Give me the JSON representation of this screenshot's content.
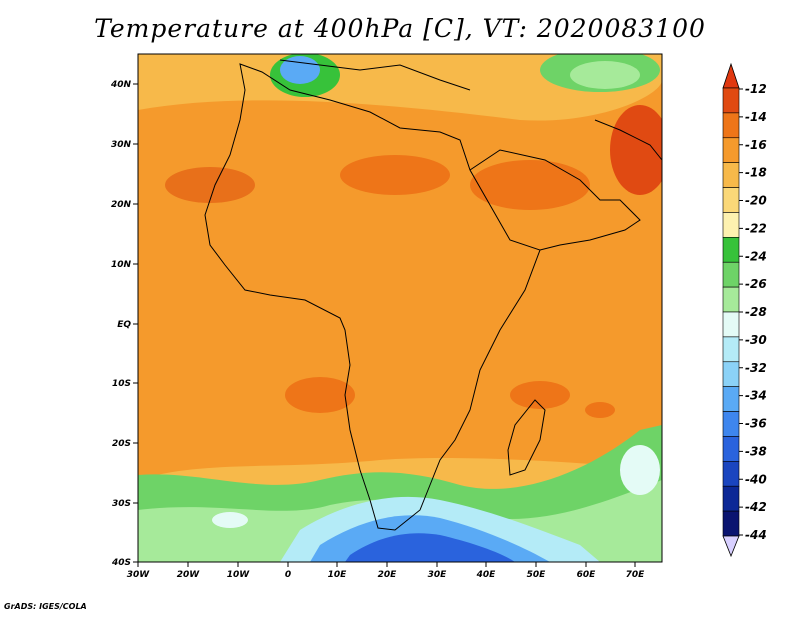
{
  "title": "Temperature at 400hPa [C], VT: 2020083100",
  "credit": "GrADS: IGES/COLA",
  "map": {
    "lon_range": [
      -30,
      76
    ],
    "lat_range": [
      -40,
      45
    ],
    "lat_ticks": [
      "40N",
      "30N",
      "20N",
      "10N",
      "EQ",
      "10S",
      "20S",
      "30S",
      "40S"
    ],
    "lon_ticks": [
      "30W",
      "20W",
      "10W",
      "0",
      "10E",
      "20E",
      "30E",
      "40E",
      "50E",
      "60E",
      "70E"
    ],
    "field": "temperature",
    "level": "400hPa",
    "units": "C",
    "valid_time": "2020083100"
  },
  "colorbar": {
    "labels": [
      "-12",
      "-14",
      "-16",
      "-18",
      "-20",
      "-22",
      "-24",
      "-26",
      "-28",
      "-30",
      "-32",
      "-34",
      "-36",
      "-38",
      "-40",
      "-42",
      "-44"
    ],
    "colors": [
      "#e04a12",
      "#ee7518",
      "#f59a2c",
      "#f7b94a",
      "#fbd878",
      "#fdf1b0",
      "#37c23a",
      "#6ed367",
      "#a6ea9a",
      "#e4fbf6",
      "#b4ebf7",
      "#8bd2f7",
      "#5aaaf5",
      "#3e86ee",
      "#2a63dd",
      "#1a45bf",
      "#0c2896",
      "#0a1470"
    ],
    "top_arrow_color": "#e03810",
    "bottom_arrow_color": "#d8d0ff"
  }
}
